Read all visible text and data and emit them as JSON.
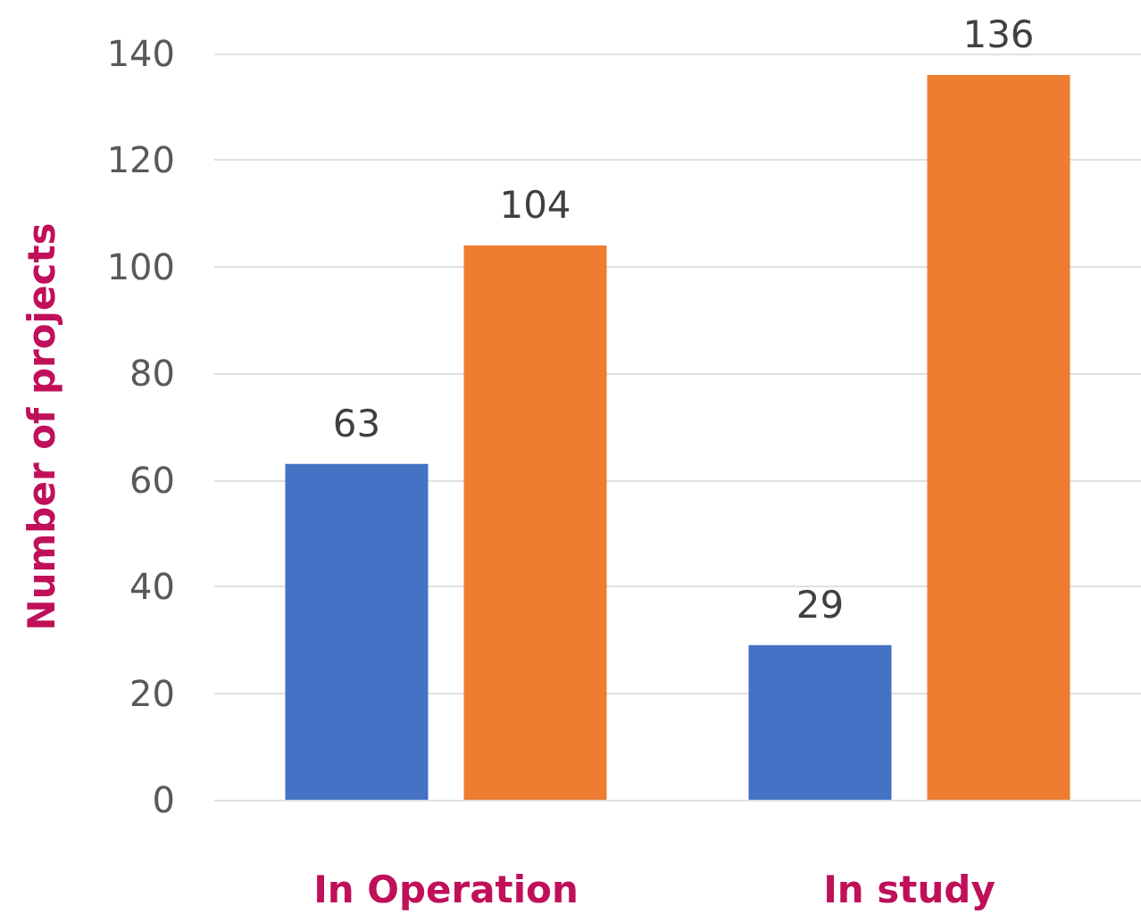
{
  "chart_data": {
    "type": "bar",
    "ylabel": "Number of projects",
    "categories": [
      "In Operation",
      "In study"
    ],
    "series": [
      {
        "color": "#4472c4",
        "values": [
          63,
          29
        ]
      },
      {
        "color": "#ed7d31",
        "values": [
          104,
          136
        ]
      }
    ],
    "ylim": [
      0,
      140
    ],
    "yticks": [
      0,
      20,
      40,
      60,
      80,
      100,
      120,
      140
    ],
    "grid": "y",
    "data_labels": true
  }
}
